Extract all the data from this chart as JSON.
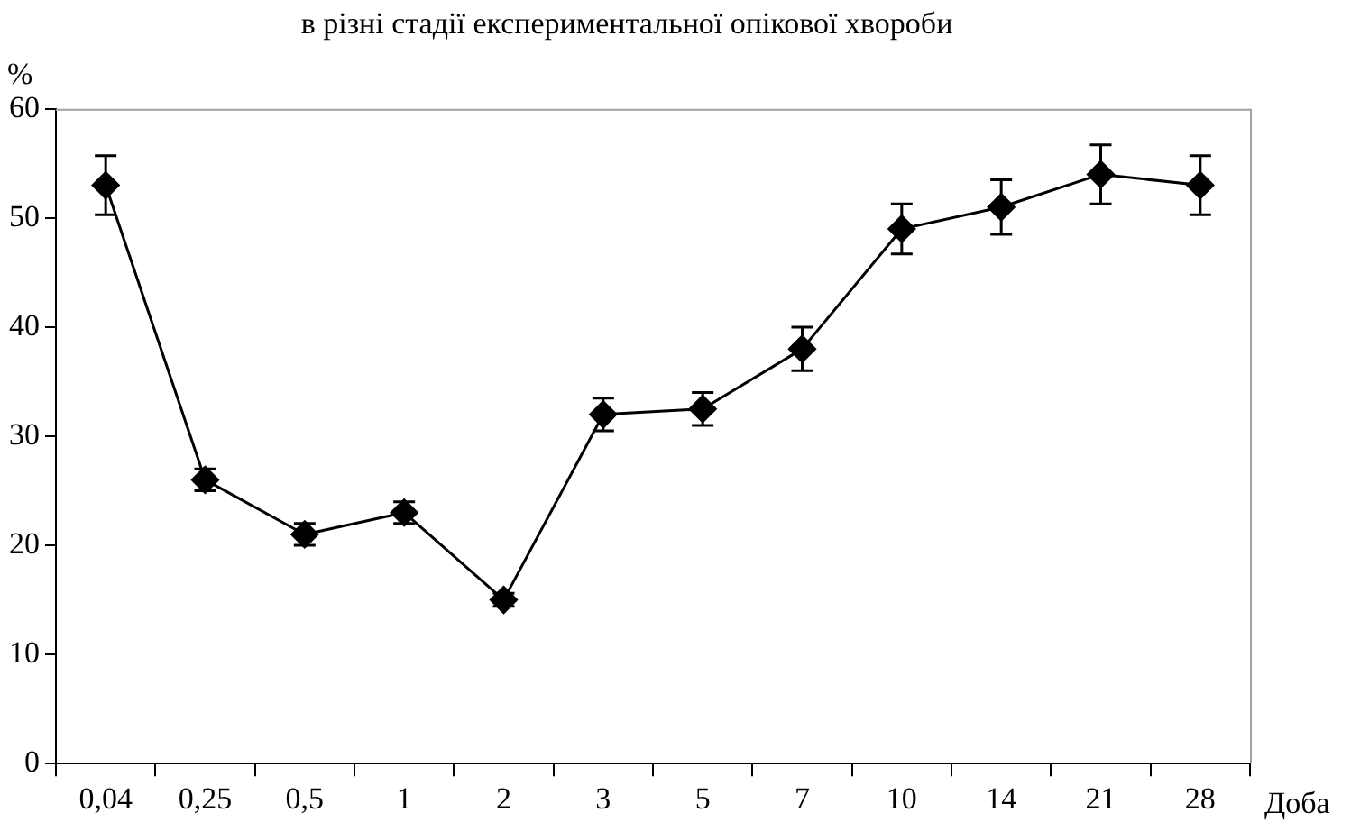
{
  "chart_data": {
    "type": "line",
    "title": "в різні стадії експериментальної опікової хвороби",
    "xlabel": "Доба",
    "ylabel": "%",
    "categories": [
      "0,04",
      "0,25",
      "0,5",
      "1",
      "2",
      "3",
      "5",
      "7",
      "10",
      "14",
      "21",
      "28"
    ],
    "series": [
      {
        "color": "#000000",
        "values": [
          53,
          26,
          21,
          23,
          15,
          32,
          32.5,
          38,
          49,
          51,
          54,
          53
        ],
        "errors": [
          2.7,
          1,
          1,
          1,
          0.6,
          1.5,
          1.5,
          2,
          2.3,
          2.5,
          2.7,
          2.7
        ]
      }
    ],
    "ylim": [
      0,
      60
    ],
    "yticks": [
      0,
      10,
      20,
      30,
      40,
      50,
      60
    ],
    "grid": false,
    "legend": false,
    "marker": "diamond",
    "line_style": "solid"
  }
}
